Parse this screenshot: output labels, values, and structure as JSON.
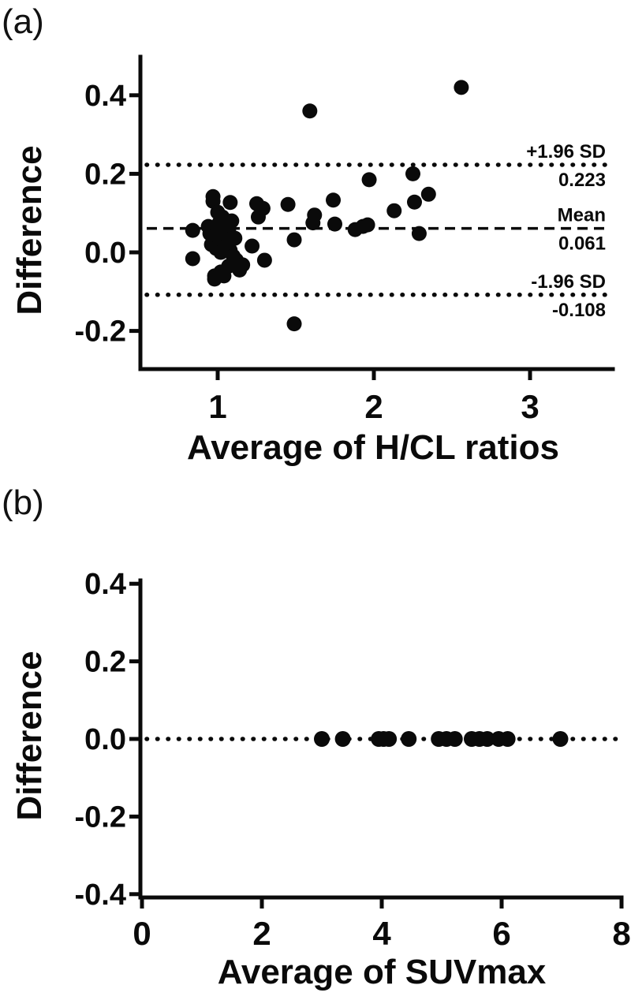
{
  "figure": {
    "background": "#ffffff",
    "ink_color": "#0a0a0a",
    "panels": [
      {
        "tag": "(a)",
        "ylabel": "Difference",
        "xlabel": "Average of H/CL ratios"
      },
      {
        "tag": "(b)",
        "ylabel": "Difference",
        "xlabel": "Average of SUVmax"
      }
    ]
  },
  "chart_data": [
    {
      "type": "scatter",
      "panel": "a",
      "title": "Bland-Altman plot: difference vs average of H/CL ratios",
      "xlabel": "Average of H/CL ratios",
      "ylabel": "Difference",
      "xlim": [
        0.5,
        3.5
      ],
      "ylim": [
        -0.3,
        0.5
      ],
      "x_ticks": [
        1,
        2,
        3
      ],
      "x_tick_labels": [
        "1",
        "2",
        "3"
      ],
      "y_ticks": [
        0.4,
        0.2,
        0.0,
        -0.2
      ],
      "y_tick_labels": [
        "0.4",
        "0.2",
        "0.0",
        "-0.2"
      ],
      "grid": false,
      "legend_position": "none",
      "marker": "filled-circle",
      "reference_lines": [
        {
          "label": "+1.96 SD",
          "value": 0.223,
          "value_label": "0.223",
          "style": "dotted"
        },
        {
          "label": "Mean",
          "value": 0.061,
          "value_label": "0.061",
          "style": "dashed"
        },
        {
          "label": "-1.96 SD",
          "value": -0.108,
          "value_label": "-0.108",
          "style": "dotted"
        }
      ],
      "points": [
        [
          0.84,
          0.056
        ],
        [
          0.84,
          -0.016
        ],
        [
          0.94,
          0.066
        ],
        [
          0.95,
          0.048
        ],
        [
          0.96,
          0.02
        ],
        [
          0.97,
          0.142
        ],
        [
          0.97,
          0.13
        ],
        [
          0.97,
          0.04
        ],
        [
          0.98,
          -0.06
        ],
        [
          0.98,
          -0.068
        ],
        [
          0.99,
          0.01
        ],
        [
          1.0,
          0.102
        ],
        [
          1.0,
          0.06
        ],
        [
          1.01,
          0.075
        ],
        [
          1.02,
          0.05
        ],
        [
          1.02,
          0.0
        ],
        [
          1.02,
          -0.05
        ],
        [
          1.03,
          0.09
        ],
        [
          1.04,
          0.03
        ],
        [
          1.04,
          -0.06
        ],
        [
          1.05,
          0.065
        ],
        [
          1.05,
          0.015
        ],
        [
          1.06,
          0.045
        ],
        [
          1.07,
          0.055
        ],
        [
          1.07,
          -0.035
        ],
        [
          1.08,
          0.127
        ],
        [
          1.08,
          0.005
        ],
        [
          1.09,
          0.08
        ],
        [
          1.09,
          0.035
        ],
        [
          1.1,
          -0.01
        ],
        [
          1.11,
          0.036
        ],
        [
          1.12,
          -0.02
        ],
        [
          1.14,
          -0.045
        ],
        [
          1.16,
          -0.032
        ],
        [
          1.22,
          0.016
        ],
        [
          1.25,
          0.124
        ],
        [
          1.26,
          0.09
        ],
        [
          1.29,
          0.112
        ],
        [
          1.3,
          -0.02
        ],
        [
          1.45,
          0.122
        ],
        [
          1.49,
          0.032
        ],
        [
          1.49,
          -0.182
        ],
        [
          1.59,
          0.36
        ],
        [
          1.61,
          0.075
        ],
        [
          1.62,
          0.095
        ],
        [
          1.74,
          0.133
        ],
        [
          1.75,
          0.072
        ],
        [
          1.88,
          0.058
        ],
        [
          1.93,
          0.066
        ],
        [
          1.96,
          0.07
        ],
        [
          1.97,
          0.185
        ],
        [
          2.13,
          0.106
        ],
        [
          2.25,
          0.2
        ],
        [
          2.26,
          0.128
        ],
        [
          2.29,
          0.048
        ],
        [
          2.35,
          0.148
        ],
        [
          2.56,
          0.42
        ]
      ]
    },
    {
      "type": "scatter",
      "panel": "b",
      "title": "Bland-Altman plot: difference vs average of SUVmax",
      "xlabel": "Average of SUVmax",
      "ylabel": "Difference",
      "xlim": [
        0,
        8
      ],
      "ylim": [
        -0.4,
        0.4
      ],
      "x_ticks": [
        0,
        2,
        4,
        6,
        8
      ],
      "x_tick_labels": [
        "0",
        "2",
        "4",
        "6",
        "8"
      ],
      "y_ticks": [
        0.4,
        0.2,
        0.0,
        -0.2,
        -0.4
      ],
      "y_tick_labels": [
        "0.4",
        "0.2",
        "0.0",
        "-0.2",
        "-0.4"
      ],
      "grid": false,
      "legend_position": "none",
      "marker": "filled-circle",
      "reference_lines": [
        {
          "label": "",
          "value": 0.0,
          "value_label": "",
          "style": "dotted"
        }
      ],
      "points": [
        [
          3.0,
          0.0
        ],
        [
          3.35,
          0.0
        ],
        [
          3.95,
          0.0
        ],
        [
          4.03,
          0.0
        ],
        [
          4.12,
          0.0
        ],
        [
          4.45,
          0.0
        ],
        [
          4.95,
          0.0
        ],
        [
          5.08,
          0.0
        ],
        [
          5.22,
          0.0
        ],
        [
          5.5,
          0.0
        ],
        [
          5.63,
          0.0
        ],
        [
          5.76,
          0.0
        ],
        [
          5.95,
          0.0
        ],
        [
          6.1,
          0.0
        ],
        [
          6.98,
          0.0
        ]
      ]
    }
  ]
}
